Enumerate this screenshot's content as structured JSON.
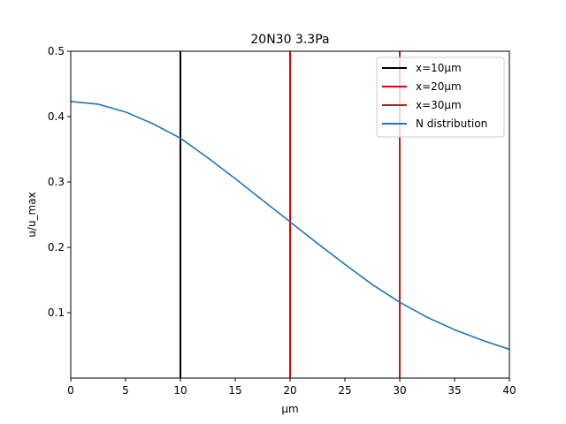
{
  "chart_data": {
    "type": "line",
    "title": "20N30 3.3Pa",
    "xlabel": "µm",
    "ylabel": "u/u_max",
    "xlim": [
      0,
      40
    ],
    "ylim": [
      0,
      0.5
    ],
    "x_ticks": [
      0,
      5,
      10,
      15,
      20,
      25,
      30,
      35,
      40
    ],
    "x_tick_labels": [
      "0",
      "5",
      "10",
      "15",
      "20",
      "25",
      "30",
      "35",
      "40"
    ],
    "y_ticks": [
      0.1,
      0.2,
      0.3,
      0.4,
      0.5
    ],
    "y_tick_labels": [
      "0.1",
      "0.2",
      "0.3",
      "0.4",
      "0.5"
    ],
    "grid": false,
    "legend_position": "top-right",
    "vlines": [
      {
        "name": "x=10µm",
        "x": 10,
        "color": "#000000"
      },
      {
        "name": "x=20µm",
        "x": 20,
        "color": "#e00000"
      },
      {
        "name": "x=30µm",
        "x": 30,
        "color": "#b22222"
      }
    ],
    "series": [
      {
        "name": "N distribution",
        "color": "#1f77b4",
        "x": [
          0,
          2.5,
          5,
          7.5,
          10,
          12.5,
          15,
          17.5,
          20,
          22.5,
          25,
          27.5,
          30,
          32.5,
          35,
          37.5,
          40
        ],
        "y": [
          0.423,
          0.419,
          0.407,
          0.389,
          0.367,
          0.337,
          0.305,
          0.272,
          0.239,
          0.206,
          0.174,
          0.143,
          0.116,
          0.093,
          0.074,
          0.058,
          0.044
        ]
      }
    ]
  }
}
